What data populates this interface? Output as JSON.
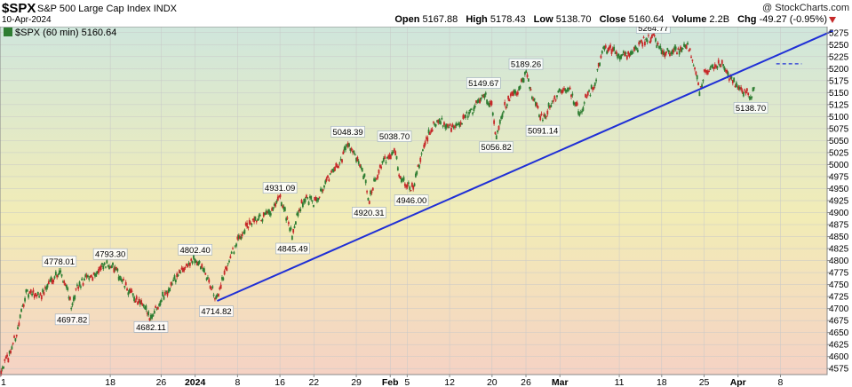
{
  "header": {
    "symbol": "$SPX",
    "name": "S&P 500 Large Cap Index",
    "exchange": "INDX",
    "date": "10-Apr-2024",
    "brand": "@ StockCharts.com"
  },
  "ohlc": {
    "open_label": "Open",
    "open": "5167.88",
    "high_label": "High",
    "high": "5178.43",
    "low_label": "Low",
    "low": "5138.70",
    "close_label": "Close",
    "close": "5160.64",
    "volume_label": "Volume",
    "volume": "2.2B",
    "chg_label": "Chg",
    "chg": "-49.27 (-0.95%)"
  },
  "legend": {
    "label": "$SPX (60 min) 5160.64"
  },
  "colors": {
    "up": "#2e7d32",
    "down": "#c62828",
    "trendline": "#1f2fd6",
    "bg_top": "#cfe6dc",
    "bg_mid": "#f2ecb6",
    "bg_bottom": "#f5d2c4",
    "grid": "#c8c8c8"
  },
  "chart_data": {
    "type": "candlestick",
    "timeframe": "60 min",
    "ylim": [
      4562.5,
      5287.5
    ],
    "y_ticks": [
      4575,
      4600,
      4625,
      4650,
      4675,
      4700,
      4725,
      4750,
      4775,
      4800,
      4825,
      4850,
      4875,
      4900,
      4925,
      4950,
      4975,
      5000,
      5025,
      5050,
      5075,
      5100,
      5125,
      5150,
      5175,
      5200,
      5225,
      5250,
      5275
    ],
    "x_ticks": [
      {
        "label": "1",
        "t": 0
      },
      {
        "label": "18",
        "t": 13
      },
      {
        "label": "26",
        "t": 19
      },
      {
        "label": "2024",
        "t": 23,
        "bold": true
      },
      {
        "label": "8",
        "t": 28
      },
      {
        "label": "16",
        "t": 33
      },
      {
        "label": "22",
        "t": 37
      },
      {
        "label": "29",
        "t": 42
      },
      {
        "label": "Feb",
        "t": 46,
        "bold": true
      },
      {
        "label": "5",
        "t": 48
      },
      {
        "label": "12",
        "t": 53
      },
      {
        "label": "20",
        "t": 58
      },
      {
        "label": "26",
        "t": 62
      },
      {
        "label": "Mar",
        "t": 66,
        "bold": true
      },
      {
        "label": "11",
        "t": 73
      },
      {
        "label": "18",
        "t": 78
      },
      {
        "label": "25",
        "t": 83
      },
      {
        "label": "Apr",
        "t": 87,
        "bold": true
      },
      {
        "label": "8",
        "t": 92
      }
    ],
    "t_range": [
      0,
      97.5
    ],
    "path": [
      [
        0,
        4570
      ],
      [
        1,
        4600
      ],
      [
        2,
        4650
      ],
      [
        3,
        4730
      ],
      [
        4,
        4730
      ],
      [
        5,
        4730
      ],
      [
        6,
        4760
      ],
      [
        7,
        4778
      ],
      [
        8,
        4740
      ],
      [
        8.5,
        4697.82
      ],
      [
        9,
        4740
      ],
      [
        10,
        4760
      ],
      [
        11,
        4770
      ],
      [
        12,
        4785
      ],
      [
        13,
        4793.3
      ],
      [
        14,
        4770
      ],
      [
        15,
        4740
      ],
      [
        16,
        4720
      ],
      [
        17,
        4700
      ],
      [
        17.8,
        4682.11
      ],
      [
        19,
        4720
      ],
      [
        21,
        4770
      ],
      [
        22,
        4790
      ],
      [
        23,
        4802.4
      ],
      [
        24,
        4780
      ],
      [
        25,
        4740
      ],
      [
        25.5,
        4714.82
      ],
      [
        26,
        4750
      ],
      [
        27,
        4800
      ],
      [
        28,
        4840
      ],
      [
        29,
        4870
      ],
      [
        30,
        4880
      ],
      [
        31,
        4890
      ],
      [
        32,
        4900
      ],
      [
        33,
        4931.09
      ],
      [
        34,
        4880
      ],
      [
        34.5,
        4845.49
      ],
      [
        35,
        4900
      ],
      [
        36,
        4930
      ],
      [
        37,
        4920
      ],
      [
        38,
        4950
      ],
      [
        39,
        4980
      ],
      [
        40,
        5000
      ],
      [
        41,
        5048.39
      ],
      [
        42,
        5010
      ],
      [
        43,
        4970
      ],
      [
        43.5,
        4920.31
      ],
      [
        44,
        4960
      ],
      [
        45,
        5000
      ],
      [
        46,
        5020
      ],
      [
        46.5,
        5038.7
      ],
      [
        47,
        4980
      ],
      [
        48,
        4960
      ],
      [
        48.5,
        4946
      ],
      [
        49,
        4970
      ],
      [
        50,
        5040
      ],
      [
        51,
        5080
      ],
      [
        52,
        5090
      ],
      [
        53,
        5080
      ],
      [
        54,
        5080
      ],
      [
        55,
        5100
      ],
      [
        56,
        5120
      ],
      [
        57,
        5149.67
      ],
      [
        58,
        5120
      ],
      [
        58.5,
        5056.82
      ],
      [
        59,
        5100
      ],
      [
        60,
        5140
      ],
      [
        61,
        5150
      ],
      [
        62,
        5189.26
      ],
      [
        63,
        5130
      ],
      [
        64,
        5091.14
      ],
      [
        65,
        5130
      ],
      [
        66,
        5150
      ],
      [
        67,
        5160
      ],
      [
        68,
        5120
      ],
      [
        68.5,
        5100
      ],
      [
        69,
        5140
      ],
      [
        70,
        5160
      ],
      [
        71,
        5240
      ],
      [
        72,
        5240
      ],
      [
        73,
        5230
      ],
      [
        74,
        5230
      ],
      [
        75,
        5240
      ],
      [
        76,
        5260
      ],
      [
        77,
        5264.77
      ],
      [
        78,
        5240
      ],
      [
        79,
        5230
      ],
      [
        80,
        5240
      ],
      [
        81,
        5250
      ],
      [
        82,
        5200
      ],
      [
        82.5,
        5150
      ],
      [
        83,
        5190
      ],
      [
        84,
        5200
      ],
      [
        85,
        5210
      ],
      [
        86,
        5180
      ],
      [
        87,
        5160
      ],
      [
        88,
        5150
      ],
      [
        88.5,
        5138.7
      ],
      [
        89,
        5160.64
      ]
    ],
    "trendline": {
      "from": [
        25.6,
        4716
      ],
      "to": [
        98.2,
        5279
      ]
    },
    "dashed_level": {
      "value": 5210,
      "from_t": 91.5,
      "to_t": 94.5
    },
    "annotations": [
      {
        "text": "4778.01",
        "t": 7,
        "y": 4778.01,
        "pos": "above"
      },
      {
        "text": "4697.82",
        "t": 8.5,
        "y": 4697.82,
        "pos": "below"
      },
      {
        "text": "4793.30",
        "t": 13,
        "y": 4793.3,
        "pos": "above"
      },
      {
        "text": "4682.11",
        "t": 17.8,
        "y": 4682.11,
        "pos": "below"
      },
      {
        "text": "4802.40",
        "t": 23,
        "y": 4802.4,
        "pos": "above"
      },
      {
        "text": "4714.82",
        "t": 25.5,
        "y": 4714.82,
        "pos": "below"
      },
      {
        "text": "4931.09",
        "t": 33,
        "y": 4931.09,
        "pos": "above"
      },
      {
        "text": "4845.49",
        "t": 34.5,
        "y": 4845.49,
        "pos": "below"
      },
      {
        "text": "5048.39",
        "t": 41,
        "y": 5048.39,
        "pos": "above"
      },
      {
        "text": "4920.31",
        "t": 43.5,
        "y": 4920.31,
        "pos": "below"
      },
      {
        "text": "5038.70",
        "t": 46.5,
        "y": 5038.7,
        "pos": "above"
      },
      {
        "text": "4946.00",
        "t": 48.5,
        "y": 4946.0,
        "pos": "below"
      },
      {
        "text": "5149.67",
        "t": 57,
        "y": 5149.67,
        "pos": "above"
      },
      {
        "text": "5056.82",
        "t": 58.5,
        "y": 5056.82,
        "pos": "below"
      },
      {
        "text": "5189.26",
        "t": 62,
        "y": 5189.26,
        "pos": "above"
      },
      {
        "text": "5091.14",
        "t": 64,
        "y": 5091.14,
        "pos": "below"
      },
      {
        "text": "5264.77",
        "t": 77,
        "y": 5264.77,
        "pos": "above"
      },
      {
        "text": "5138.70",
        "t": 88.5,
        "y": 5138.7,
        "pos": "below"
      }
    ]
  }
}
